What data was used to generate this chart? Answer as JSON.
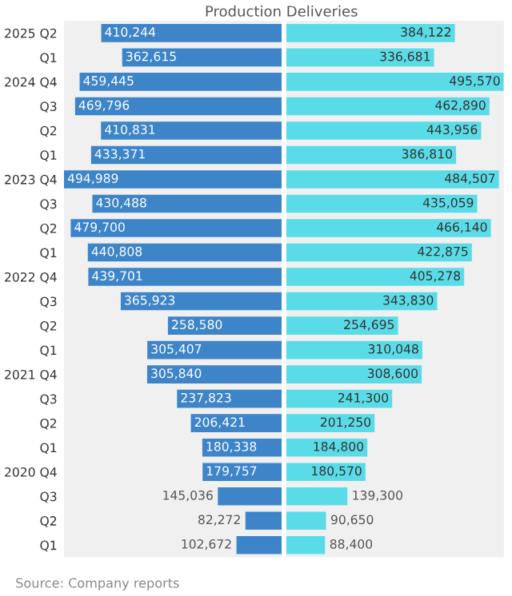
{
  "chart_data": [
    {
      "type": "bar",
      "orientation": "horizontal",
      "title": "Production",
      "categories": [
        "2025 Q2",
        "Q1",
        "2024 Q4",
        "Q3",
        "Q2",
        "Q1",
        "2023 Q4",
        "Q3",
        "Q2",
        "Q1",
        "2022 Q4",
        "Q3",
        "Q2",
        "Q1",
        "2021 Q4",
        "Q3",
        "Q2",
        "Q1",
        "2020 Q4",
        "Q3",
        "Q2",
        "Q1"
      ],
      "series": [
        {
          "color": "#3d85c8",
          "values": [
            410244,
            362615,
            459445,
            469796,
            410831,
            433371,
            494989,
            430488,
            479700,
            440808,
            439701,
            365923,
            258580,
            305407,
            305840,
            237823,
            206421,
            180338,
            179757,
            145036,
            82272,
            102672
          ],
          "value_labels": [
            "410,244",
            "362,615",
            "459,445",
            "469,796",
            "410,831",
            "433,371",
            "494,989",
            "430,488",
            "479,700",
            "440,808",
            "439,701",
            "365,923",
            "258,580",
            "305,407",
            "305,840",
            "237,823",
            "206,421",
            "180,338",
            "179,757",
            "145,036",
            "82,272",
            "102,672"
          ]
        }
      ],
      "annotations": [
        "Source: Company reports"
      ]
    },
    {
      "type": "bar",
      "orientation": "horizontal",
      "title": "Deliveries",
      "categories": [
        null,
        null,
        null,
        null,
        null,
        null,
        null,
        null,
        null,
        null,
        null,
        null,
        null,
        null,
        null,
        null,
        null,
        null,
        null,
        null,
        null,
        null
      ],
      "series": [
        {
          "color": "#5adce8",
          "values": [
            384122,
            336681,
            495570,
            462890,
            443956,
            386810,
            484507,
            435059,
            466140,
            422875,
            405278,
            343830,
            254695,
            310048,
            308600,
            241300,
            201250,
            184800,
            180570,
            139300,
            90650,
            88400
          ],
          "value_labels": [
            "384,122",
            "336,681",
            "495,570",
            "462,890",
            "443,956",
            "386,810",
            "484,507",
            "435,059",
            "466,140",
            "422,875",
            "405,278",
            "343,830",
            "254,695",
            "310,048",
            "308,600",
            "241,300",
            "201,250",
            "184,800",
            "180,570",
            "139,300",
            "90,650",
            "88,400"
          ]
        }
      ]
    }
  ]
}
